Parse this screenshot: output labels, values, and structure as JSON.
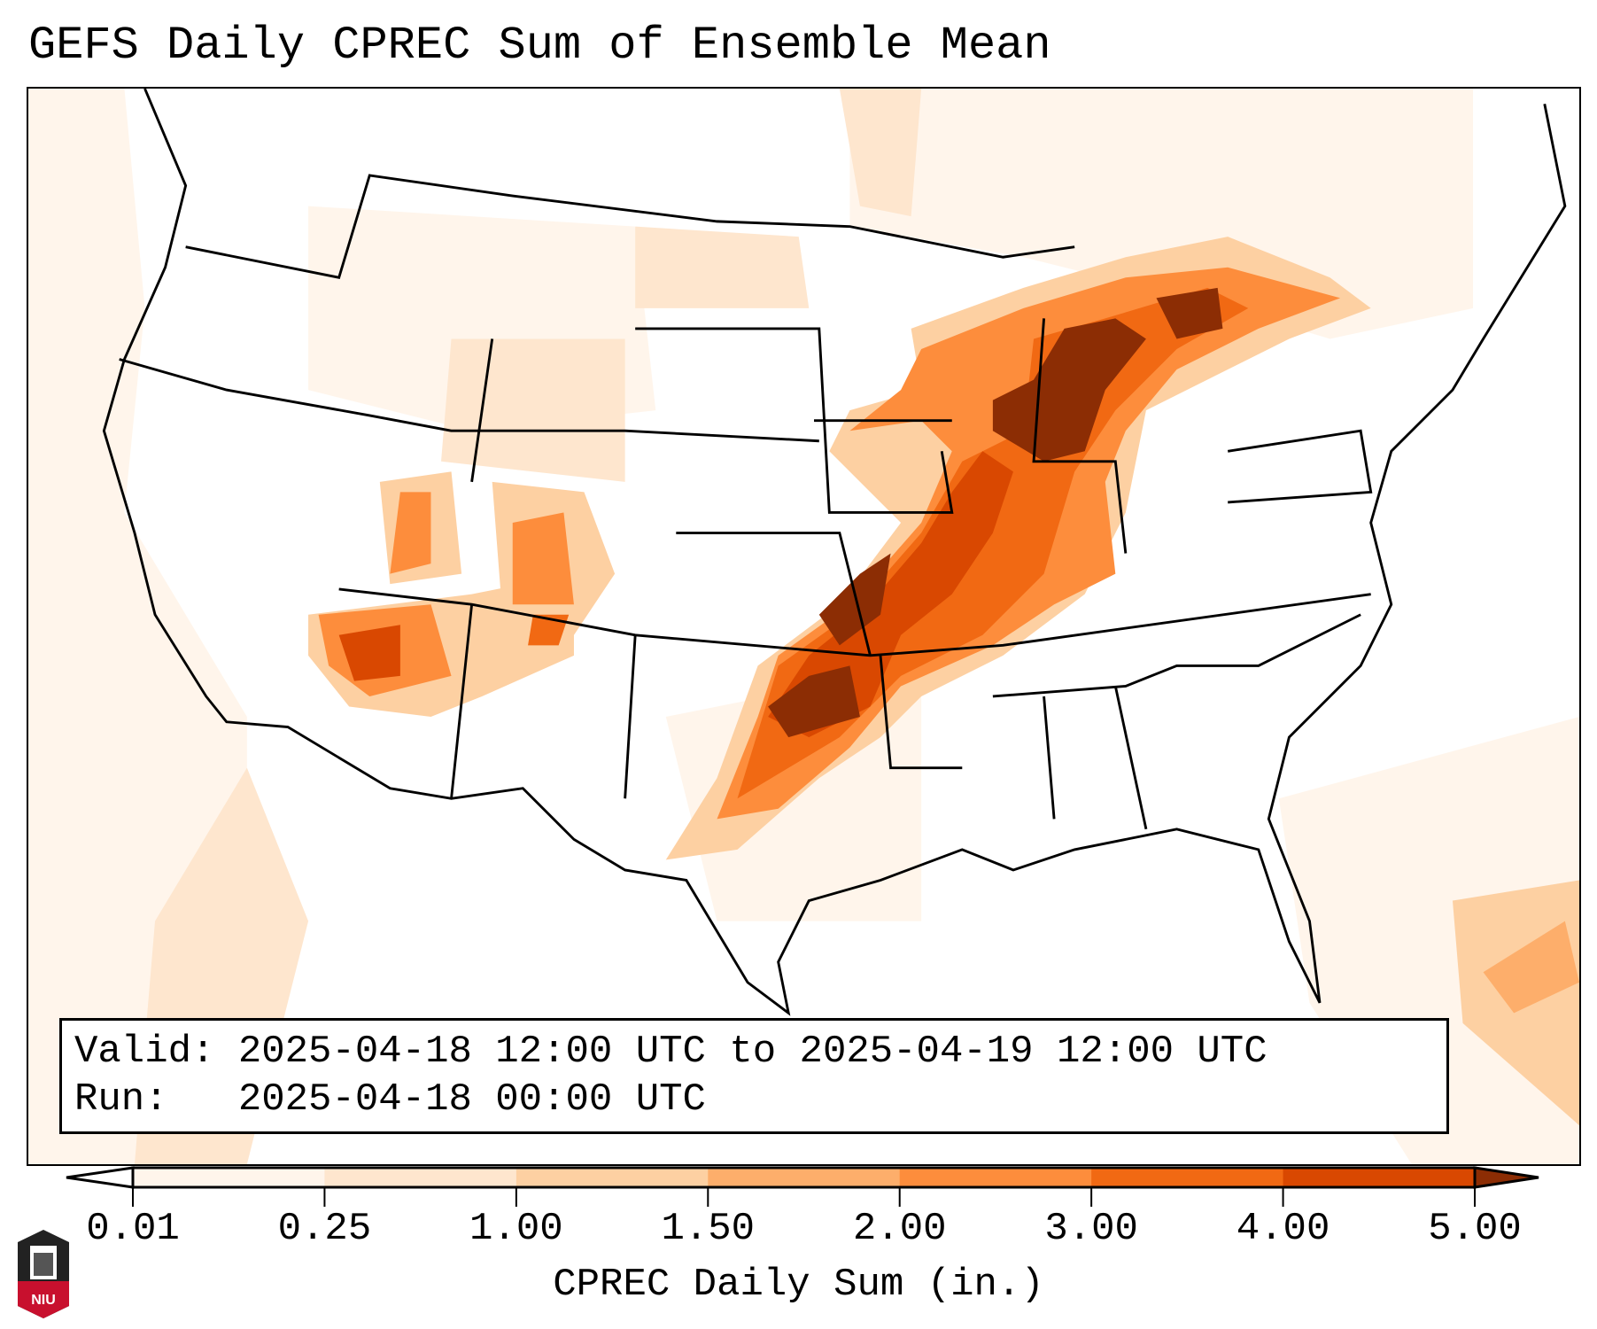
{
  "title": "GEFS Daily CPREC Sum of Ensemble Mean",
  "legend": {
    "valid_line": "Valid: 2025-04-18 12:00 UTC to 2025-04-19 12:00 UTC",
    "run_line": "Run:   2025-04-18 00:00 UTC"
  },
  "colorbar": {
    "label": "CPREC Daily Sum (in.)",
    "ticks": [
      "0.01",
      "0.25",
      "1.00",
      "1.50",
      "2.00",
      "3.00",
      "4.00",
      "5.00"
    ],
    "colors": [
      "#fff5eb",
      "#fee6ce",
      "#fdd0a2",
      "#fdae6b",
      "#fd8d3c",
      "#f16913",
      "#d94801",
      "#8c2d04"
    ],
    "under_color": "#ffffff",
    "over_color": "#8c2d04"
  },
  "logo": {
    "text": "NIU",
    "color": "#c8102e"
  }
}
